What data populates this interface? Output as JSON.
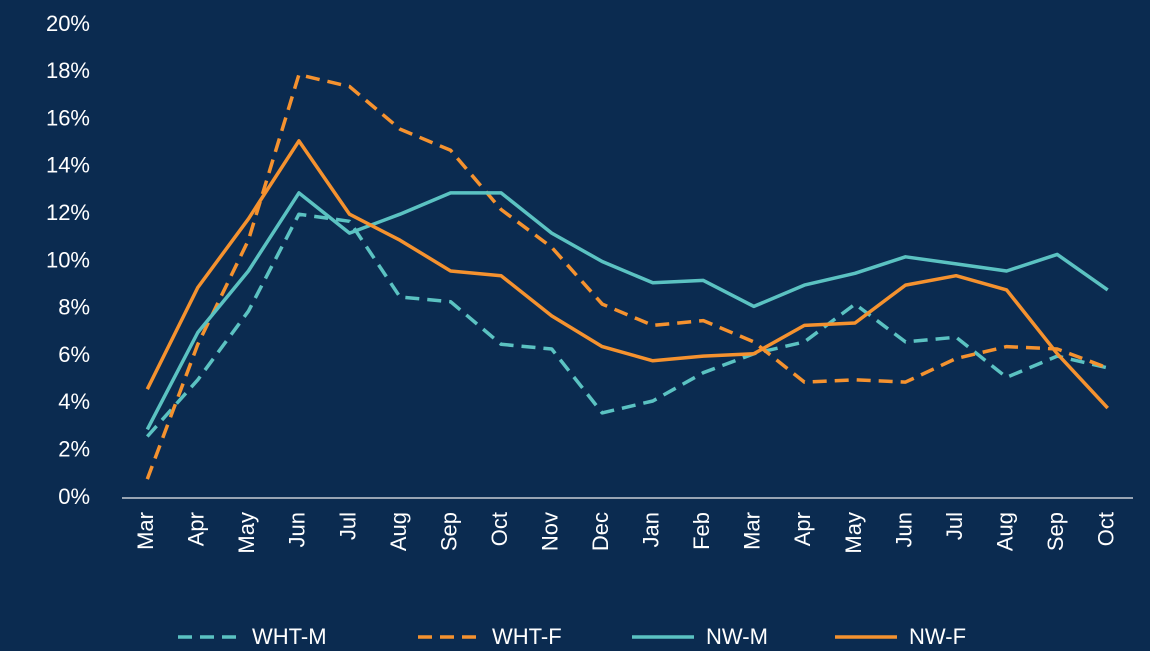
{
  "chart_data": {
    "type": "line",
    "categories": [
      "Mar",
      "Apr",
      "May",
      "Jun",
      "Jul",
      "Aug",
      "Sep",
      "Oct",
      "Nov",
      "Dec",
      "Jan",
      "Feb",
      "Mar",
      "Apr",
      "May",
      "Jun",
      "Jul",
      "Aug",
      "Sep",
      "Oct"
    ],
    "series": [
      {
        "name": "WHT-M",
        "color": "#5bc2c2",
        "dashed": true,
        "values": [
          2.6,
          5.0,
          7.9,
          12.0,
          11.7,
          8.5,
          8.3,
          6.5,
          6.3,
          3.6,
          4.1,
          5.3,
          6.1,
          6.6,
          8.2,
          6.6,
          6.8,
          5.1,
          6.0,
          5.5
        ]
      },
      {
        "name": "WHT-F",
        "color": "#f5922f",
        "dashed": true,
        "values": [
          0.8,
          6.5,
          10.9,
          17.9,
          17.4,
          15.6,
          14.7,
          12.2,
          10.6,
          8.2,
          7.3,
          7.5,
          6.6,
          4.9,
          5.0,
          4.9,
          5.9,
          6.4,
          6.3,
          5.5
        ]
      },
      {
        "name": "NW-M",
        "color": "#5bc2c2",
        "dashed": false,
        "values": [
          2.9,
          7.0,
          9.6,
          12.9,
          11.2,
          12.0,
          12.9,
          12.9,
          11.2,
          10.0,
          9.1,
          9.2,
          8.1,
          9.0,
          9.5,
          10.2,
          9.9,
          9.6,
          10.3,
          8.8
        ]
      },
      {
        "name": "NW-F",
        "color": "#f5922f",
        "dashed": false,
        "values": [
          4.6,
          8.9,
          11.8,
          15.1,
          12.0,
          10.9,
          9.6,
          9.4,
          7.7,
          6.4,
          5.8,
          6.0,
          6.1,
          7.3,
          7.4,
          9.0,
          9.4,
          8.8,
          6.1,
          3.8
        ]
      }
    ],
    "ylim": [
      0,
      20
    ],
    "yticks": [
      {
        "value": 0,
        "label": "0%"
      },
      {
        "value": 2,
        "label": "2%"
      },
      {
        "value": 4,
        "label": "4%"
      },
      {
        "value": 6,
        "label": "6%"
      },
      {
        "value": 8,
        "label": "8%"
      },
      {
        "value": 10,
        "label": "10%"
      },
      {
        "value": 12,
        "label": "12%"
      },
      {
        "value": 14,
        "label": "14%"
      },
      {
        "value": 16,
        "label": "16%"
      },
      {
        "value": 18,
        "label": "18%"
      },
      {
        "value": 20,
        "label": "20%"
      }
    ],
    "grid": false,
    "legend": "bottom"
  }
}
